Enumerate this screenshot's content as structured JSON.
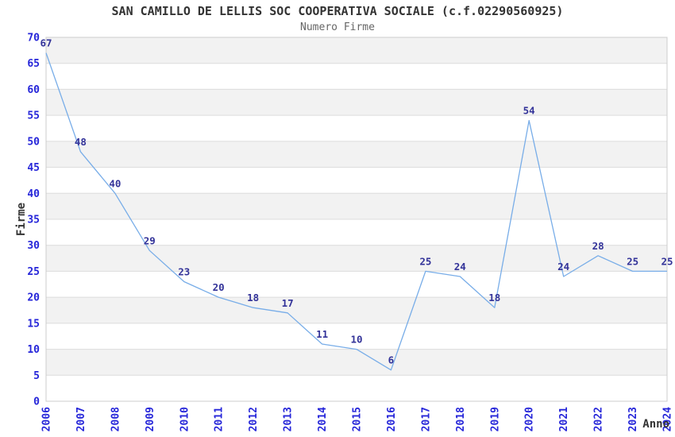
{
  "colors": {
    "line": "#78ade8",
    "tick_label": "#2626d9",
    "data_label": "#333399",
    "band_fill": "#f2f2f2",
    "grid_line": "#dcdcdc",
    "plot_border": "#cccccc",
    "title_text": "#333333",
    "subtitle_text": "#666666"
  },
  "chart_data": {
    "type": "line",
    "title": "SAN CAMILLO DE LELLIS SOC COOPERATIVA SOCIALE (c.f.02290560925)",
    "subtitle": "Numero Firme",
    "xlabel": "Anno",
    "ylabel": "Firme",
    "categories": [
      "2006",
      "2007",
      "2008",
      "2009",
      "2010",
      "2011",
      "2012",
      "2013",
      "2014",
      "2015",
      "2016",
      "2017",
      "2018",
      "2019",
      "2020",
      "2021",
      "2022",
      "2023",
      "2024"
    ],
    "values": [
      67,
      48,
      40,
      29,
      23,
      20,
      18,
      17,
      11,
      10,
      6,
      25,
      24,
      18,
      54,
      24,
      28,
      25,
      25
    ],
    "ylim": [
      0,
      70
    ],
    "y_ticks": [
      0,
      5,
      10,
      15,
      20,
      25,
      30,
      35,
      40,
      45,
      50,
      55,
      60,
      65,
      70
    ],
    "grid": "horizontal alternating bands every 5 units",
    "legend": "none",
    "point_labels_shown": true
  }
}
